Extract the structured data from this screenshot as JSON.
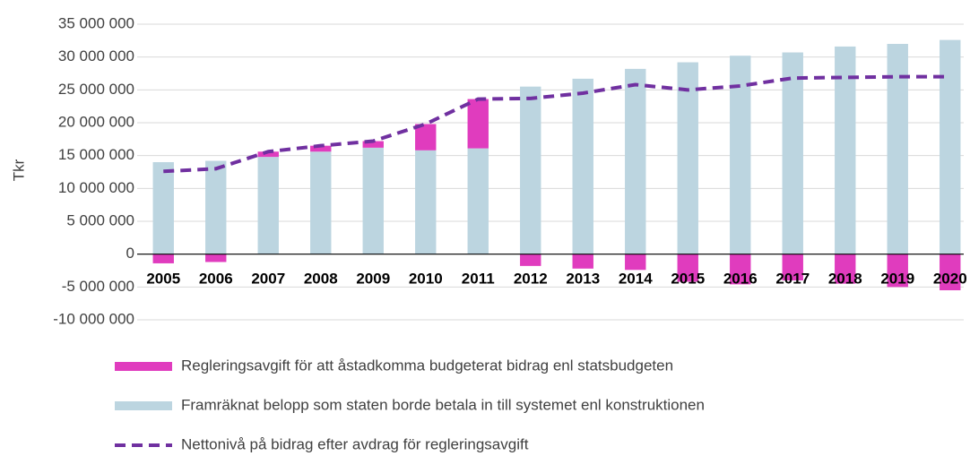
{
  "chart_data": {
    "type": "bar",
    "y_label": "Tkr",
    "categories": [
      "2005",
      "2006",
      "2007",
      "2008",
      "2009",
      "2010",
      "2011",
      "2012",
      "2013",
      "2014",
      "2015",
      "2016",
      "2017",
      "2018",
      "2019",
      "2020"
    ],
    "series": [
      {
        "name": "Regleringsavgift för att åstadkomma budgeterat bidrag enl statsbudgeten",
        "type": "bar",
        "color": "#e03cbe",
        "values": [
          -1400000,
          -1200000,
          800000,
          900000,
          1000000,
          4000000,
          7500000,
          -1800000,
          -2200000,
          -2400000,
          -4200000,
          -4600000,
          -4000000,
          -4500000,
          -5000000,
          -5500000
        ]
      },
      {
        "name": "Framräknat belopp som staten borde betala in till systemet enl konstruktionen",
        "type": "bar",
        "color": "#bcd5e0",
        "values": [
          14000000,
          14200000,
          14800000,
          15600000,
          16200000,
          15800000,
          16100000,
          25500000,
          26700000,
          28200000,
          29200000,
          30200000,
          30700000,
          31600000,
          32000000,
          32600000
        ]
      },
      {
        "name": "Nettonivå på bidrag efter avdrag för regleringsavgift",
        "type": "line",
        "color": "#7030a0",
        "values": [
          12600000,
          13000000,
          15600000,
          16500000,
          17200000,
          19800000,
          23600000,
          23700000,
          24500000,
          25800000,
          25000000,
          25600000,
          26800000,
          26900000,
          27000000,
          27000000
        ]
      }
    ],
    "ylim": [
      -10000000,
      35000000
    ],
    "yticks": [
      {
        "value": -10000000,
        "label": "-10 000 000"
      },
      {
        "value": -5000000,
        "label": "-5 000 000"
      },
      0,
      {
        "value": 5000000,
        "label": "5 000 000"
      },
      {
        "value": 10000000,
        "label": "10 000 000"
      },
      {
        "value": 15000000,
        "label": "15 000 000"
      },
      {
        "value": 20000000,
        "label": "20 000 000"
      },
      {
        "value": 25000000,
        "label": "25 000 000"
      },
      {
        "value": 30000000,
        "label": "30 000 000"
      },
      {
        "value": 35000000,
        "label": "35 000 000"
      }
    ],
    "grid": true
  }
}
